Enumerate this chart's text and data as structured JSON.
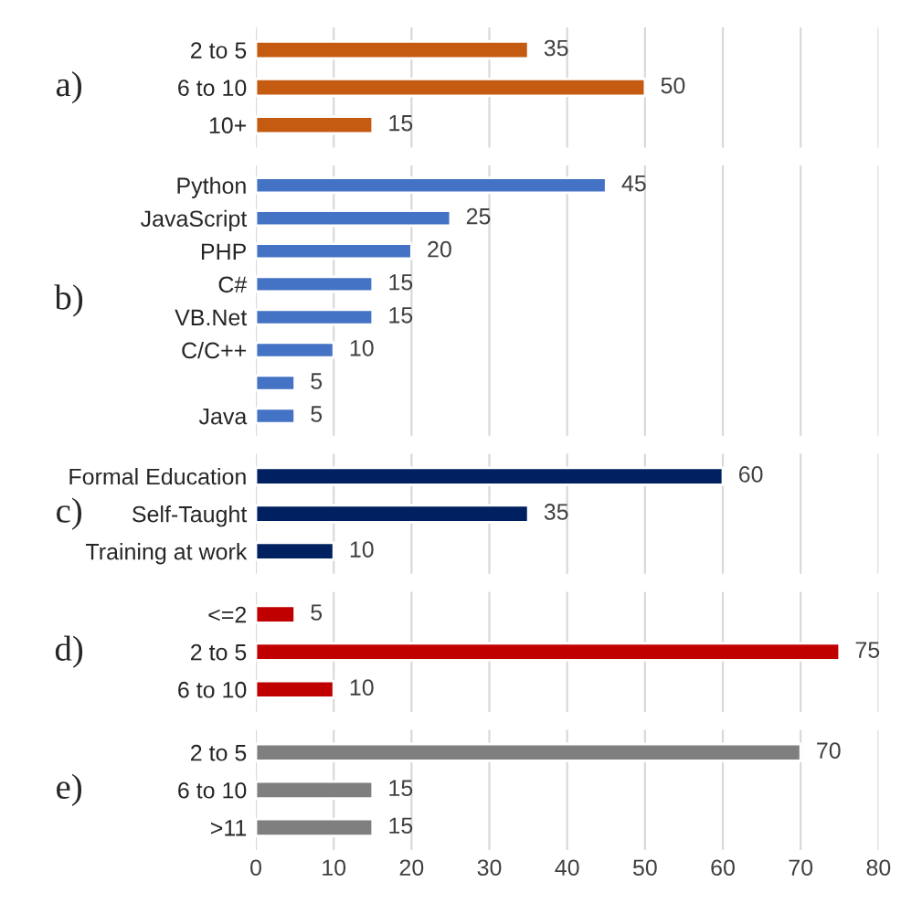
{
  "chart_data": [
    {
      "type": "bar",
      "orientation": "horizontal",
      "ylabel": "a)",
      "categories": [
        "2 to 5",
        "6 to 10",
        "10+"
      ],
      "values": [
        35,
        50,
        15
      ],
      "color": "#c55a11",
      "data_labels": true,
      "xlim": [
        0,
        80
      ],
      "xticks": [
        0,
        10,
        20,
        30,
        40,
        50,
        60,
        70,
        80
      ],
      "grid": "x",
      "tick_labels": "y"
    },
    {
      "type": "bar",
      "orientation": "horizontal",
      "ylabel": "b)",
      "categories": [
        "Python",
        "JavaScript",
        "PHP",
        "C#",
        "VB.Net",
        "C/C++",
        null,
        "Java"
      ],
      "values": [
        45,
        25,
        20,
        15,
        15,
        10,
        5,
        5
      ],
      "color": "#4472c4",
      "data_labels": true,
      "xlim": [
        0,
        80
      ],
      "xticks": [
        0,
        10,
        20,
        30,
        40,
        50,
        60,
        70,
        80
      ],
      "grid": "x",
      "tick_labels": "y"
    },
    {
      "type": "bar",
      "orientation": "horizontal",
      "ylabel": "c)",
      "categories": [
        "Formal Education",
        "Self-Taught",
        "Training at work"
      ],
      "values": [
        60,
        35,
        10
      ],
      "color": "#002060",
      "data_labels": true,
      "xlim": [
        0,
        80
      ],
      "xticks": [
        0,
        10,
        20,
        30,
        40,
        50,
        60,
        70,
        80
      ],
      "grid": "x",
      "tick_labels": "y"
    },
    {
      "type": "bar",
      "orientation": "horizontal",
      "ylabel": "d)",
      "categories": [
        "<=2",
        "2 to 5",
        "6 to 10"
      ],
      "values": [
        5,
        75,
        10
      ],
      "color": "#c00000",
      "data_labels": true,
      "xlim": [
        0,
        80
      ],
      "xticks": [
        0,
        10,
        20,
        30,
        40,
        50,
        60,
        70,
        80
      ],
      "grid": "x",
      "tick_labels": "y"
    },
    {
      "type": "bar",
      "orientation": "horizontal",
      "ylabel": "e)",
      "categories": [
        "2 to 5",
        "6 to 10",
        ">11"
      ],
      "values": [
        70,
        15,
        15
      ],
      "color": "#7f7f7f",
      "data_labels": true,
      "xlim": [
        0,
        80
      ],
      "xticks": [
        0,
        10,
        20,
        30,
        40,
        50,
        60,
        70,
        80
      ],
      "grid": "x"
    }
  ]
}
